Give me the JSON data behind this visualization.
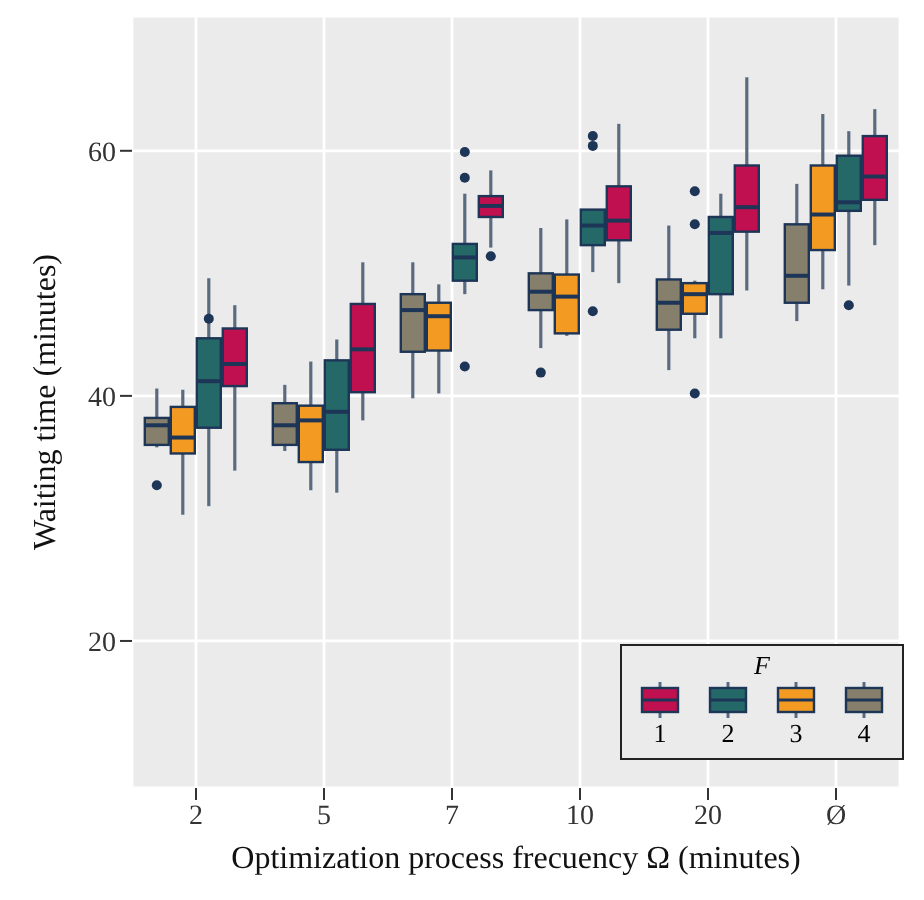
{
  "chart_data": {
    "type": "box",
    "xlabel": "Optimization process frecuency Ω (minutes)",
    "ylabel": "Waiting time (minutes)",
    "legend_title": "F",
    "categories": [
      "2",
      "5",
      "7",
      "10",
      "20",
      "Ø"
    ],
    "ylim": [
      8,
      71
    ],
    "yticks": [
      20,
      40,
      60
    ],
    "grid": true,
    "legend": "bottom right",
    "series": [
      {
        "name": "1",
        "color": "#c0104f",
        "boxes": [
          {
            "low": 33.9,
            "q1": 40.8,
            "median": 42.6,
            "q3": 45.5,
            "high": 47.4
          },
          {
            "low": 38.0,
            "q1": 40.3,
            "median": 43.8,
            "q3": 47.5,
            "high": 50.9
          },
          {
            "low": 52.1,
            "q1": 54.6,
            "median": 55.5,
            "q3": 56.3,
            "high": 58.4,
            "outliers": [
              51.4
            ]
          },
          {
            "low": 49.2,
            "q1": 52.7,
            "median": 54.3,
            "q3": 57.1,
            "high": 62.2
          },
          {
            "low": 48.6,
            "q1": 53.4,
            "median": 55.4,
            "q3": 58.8,
            "high": 66.0
          },
          {
            "low": 52.3,
            "q1": 56.0,
            "median": 57.9,
            "q3": 61.2,
            "high": 63.4
          }
        ]
      },
      {
        "name": "2",
        "color": "#246868",
        "boxes": [
          {
            "low": 31.0,
            "q1": 37.4,
            "median": 41.2,
            "q3": 44.7,
            "high": 49.6,
            "outliers": [
              46.3
            ]
          },
          {
            "low": 32.1,
            "q1": 35.6,
            "median": 38.7,
            "q3": 42.9,
            "high": 44.6
          },
          {
            "low": 48.3,
            "q1": 49.4,
            "median": 51.3,
            "q3": 52.4,
            "high": 56.5,
            "outliers": [
              59.9,
              57.8,
              42.4
            ]
          },
          {
            "low": 50.1,
            "q1": 52.3,
            "median": 53.9,
            "q3": 55.2,
            "high": 55.2,
            "outliers": [
              61.2,
              60.4,
              46.9
            ]
          },
          {
            "low": 44.7,
            "q1": 48.3,
            "median": 53.3,
            "q3": 54.6,
            "high": 56.5
          },
          {
            "low": 49.0,
            "q1": 55.1,
            "median": 55.8,
            "q3": 59.6,
            "high": 61.6,
            "outliers": [
              47.4
            ]
          }
        ]
      },
      {
        "name": "3",
        "color": "#f39a22",
        "boxes": [
          {
            "low": 30.3,
            "q1": 35.3,
            "median": 36.6,
            "q3": 39.1,
            "high": 40.5
          },
          {
            "low": 32.3,
            "q1": 34.6,
            "median": 38.0,
            "q3": 39.2,
            "high": 42.8
          },
          {
            "low": 40.2,
            "q1": 43.7,
            "median": 46.5,
            "q3": 47.6,
            "high": 49.1
          },
          {
            "low": 44.9,
            "q1": 45.1,
            "median": 48.1,
            "q3": 49.9,
            "high": 54.4
          },
          {
            "low": 44.7,
            "q1": 46.7,
            "median": 48.3,
            "q3": 49.2,
            "high": 49.4,
            "outliers": [
              56.7,
              54.0,
              40.2
            ]
          },
          {
            "low": 48.7,
            "q1": 51.9,
            "median": 54.8,
            "q3": 58.8,
            "high": 63.0
          }
        ]
      },
      {
        "name": "4",
        "color": "#857f6b",
        "boxes": [
          {
            "low": 35.8,
            "q1": 36.0,
            "median": 37.6,
            "q3": 38.2,
            "high": 40.6,
            "outliers": [
              32.7
            ]
          },
          {
            "low": 35.5,
            "q1": 36.0,
            "median": 37.6,
            "q3": 39.4,
            "high": 40.9
          },
          {
            "low": 39.8,
            "q1": 43.6,
            "median": 47.0,
            "q3": 48.3,
            "high": 50.9
          },
          {
            "low": 43.9,
            "q1": 47.0,
            "median": 48.5,
            "q3": 50.0,
            "high": 53.7,
            "outliers": [
              41.9
            ]
          },
          {
            "low": 42.1,
            "q1": 45.4,
            "median": 47.6,
            "q3": 49.5,
            "high": 53.9
          },
          {
            "low": 46.1,
            "q1": 47.6,
            "median": 49.8,
            "q3": 54.0,
            "high": 57.3
          }
        ]
      }
    ]
  }
}
